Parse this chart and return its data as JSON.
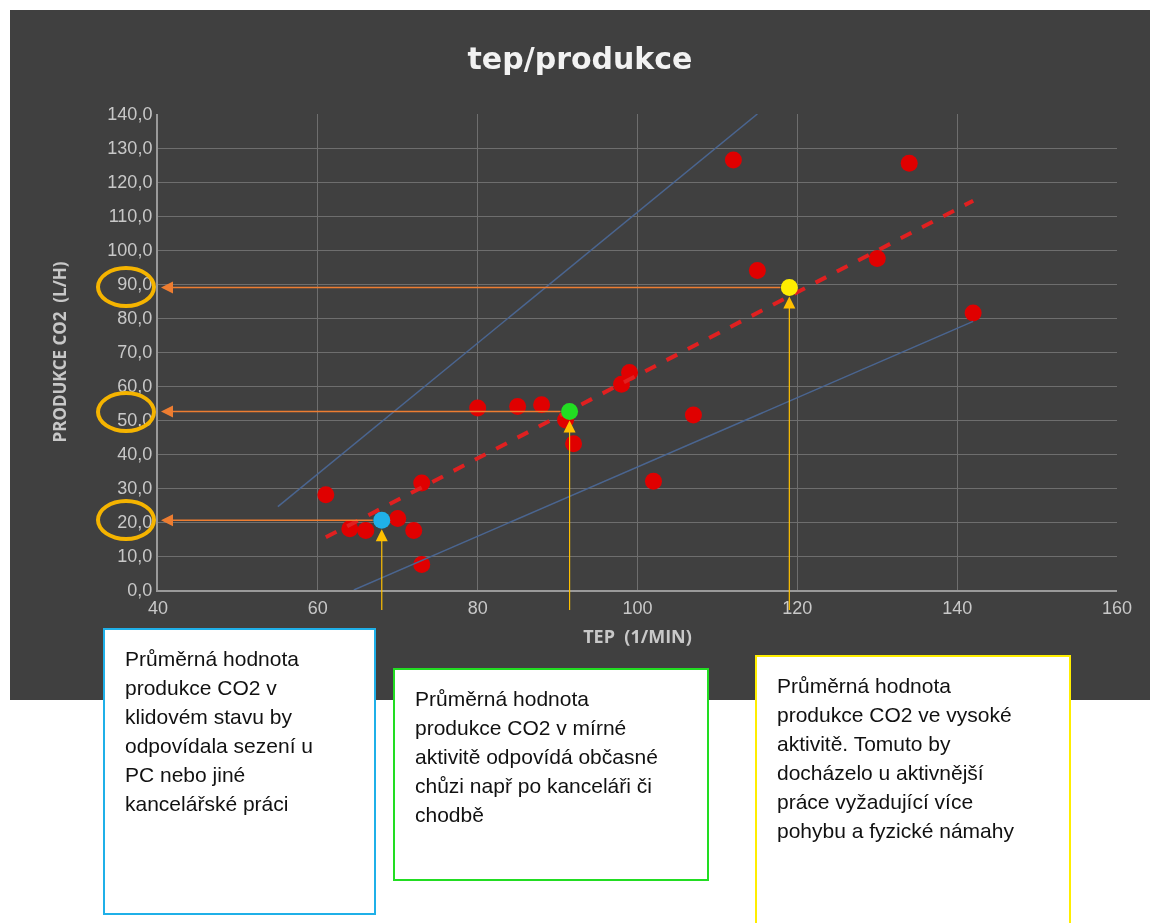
{
  "chart_data": {
    "type": "scatter",
    "title": "tep/produkce",
    "xlabel": "TEP  (1/MIN)",
    "ylabel": "PRODUKCE CO2  (L/H)",
    "xlim": [
      40,
      160
    ],
    "xticks": [
      40,
      60,
      80,
      100,
      120,
      140,
      160
    ],
    "ylim": [
      0,
      140
    ],
    "yticks": [
      {
        "value": 0,
        "label": "0,0"
      },
      {
        "value": 10,
        "label": "10,0"
      },
      {
        "value": 20,
        "label": "20,0"
      },
      {
        "value": 30,
        "label": "30,0"
      },
      {
        "value": 40,
        "label": "40,0"
      },
      {
        "value": 50,
        "label": "50,0"
      },
      {
        "value": 60,
        "label": "60,0"
      },
      {
        "value": 70,
        "label": "70,0"
      },
      {
        "value": 80,
        "label": "80,0"
      },
      {
        "value": 90,
        "label": "90,0"
      },
      {
        "value": 100,
        "label": "100,0"
      },
      {
        "value": 110,
        "label": "110,0"
      },
      {
        "value": 120,
        "label": "120,0"
      },
      {
        "value": 130,
        "label": "130,0"
      },
      {
        "value": 140,
        "label": "140,0"
      }
    ],
    "grid": true,
    "marker": "circle",
    "series": [
      {
        "type": "scatter",
        "color": "#e00000",
        "x": [
          61,
          64,
          66,
          70,
          72,
          73,
          73,
          80,
          85,
          88,
          91,
          92,
          98,
          99,
          102,
          107,
          112,
          115,
          130,
          134,
          142
        ],
        "values": [
          28,
          18,
          17.5,
          21,
          17.5,
          31.5,
          7.5,
          53.5,
          54,
          54.5,
          50,
          43,
          60.5,
          64,
          32,
          51.5,
          126.5,
          94,
          97.5,
          125.5,
          81.5
        ]
      },
      {
        "type": "line",
        "color": "#e02020",
        "line_style": "dashed",
        "marker": "none",
        "x": [
          61,
          142
        ],
        "values": [
          15.5,
          114.5
        ]
      },
      {
        "type": "line",
        "color": "#4a6590",
        "marker": "none",
        "x": [
          55,
          115
        ],
        "values": [
          24.5,
          140
        ]
      },
      {
        "type": "line",
        "color": "#4a6590",
        "marker": "none",
        "x": [
          64.5,
          142
        ],
        "values": [
          0,
          79
        ]
      },
      {
        "type": "scatter",
        "color": "#1fb0e8",
        "x": [
          68
        ],
        "values": [
          20.5
        ]
      },
      {
        "type": "scatter",
        "color": "#22dd22",
        "x": [
          91.5
        ],
        "values": [
          52.5
        ]
      },
      {
        "type": "scatter",
        "color": "#ffee00",
        "x": [
          119
        ],
        "values": [
          89
        ]
      }
    ],
    "annotations": [
      "Průměrná hodnota produkce CO2 v klidovém stavu by odpovídala sezení u PC nebo jiné kancelářské práci",
      "Průměrná hodnota produkce CO2 v mírné aktivitě odpovídá občasné chůzi např po kanceláři či chodbě",
      "Průměrná hodnota produkce CO2 ve vysoké aktivitě. Tomuto by docházelo u aktivnější práce vyžadující více pohybu a fyzické námahy"
    ]
  }
}
